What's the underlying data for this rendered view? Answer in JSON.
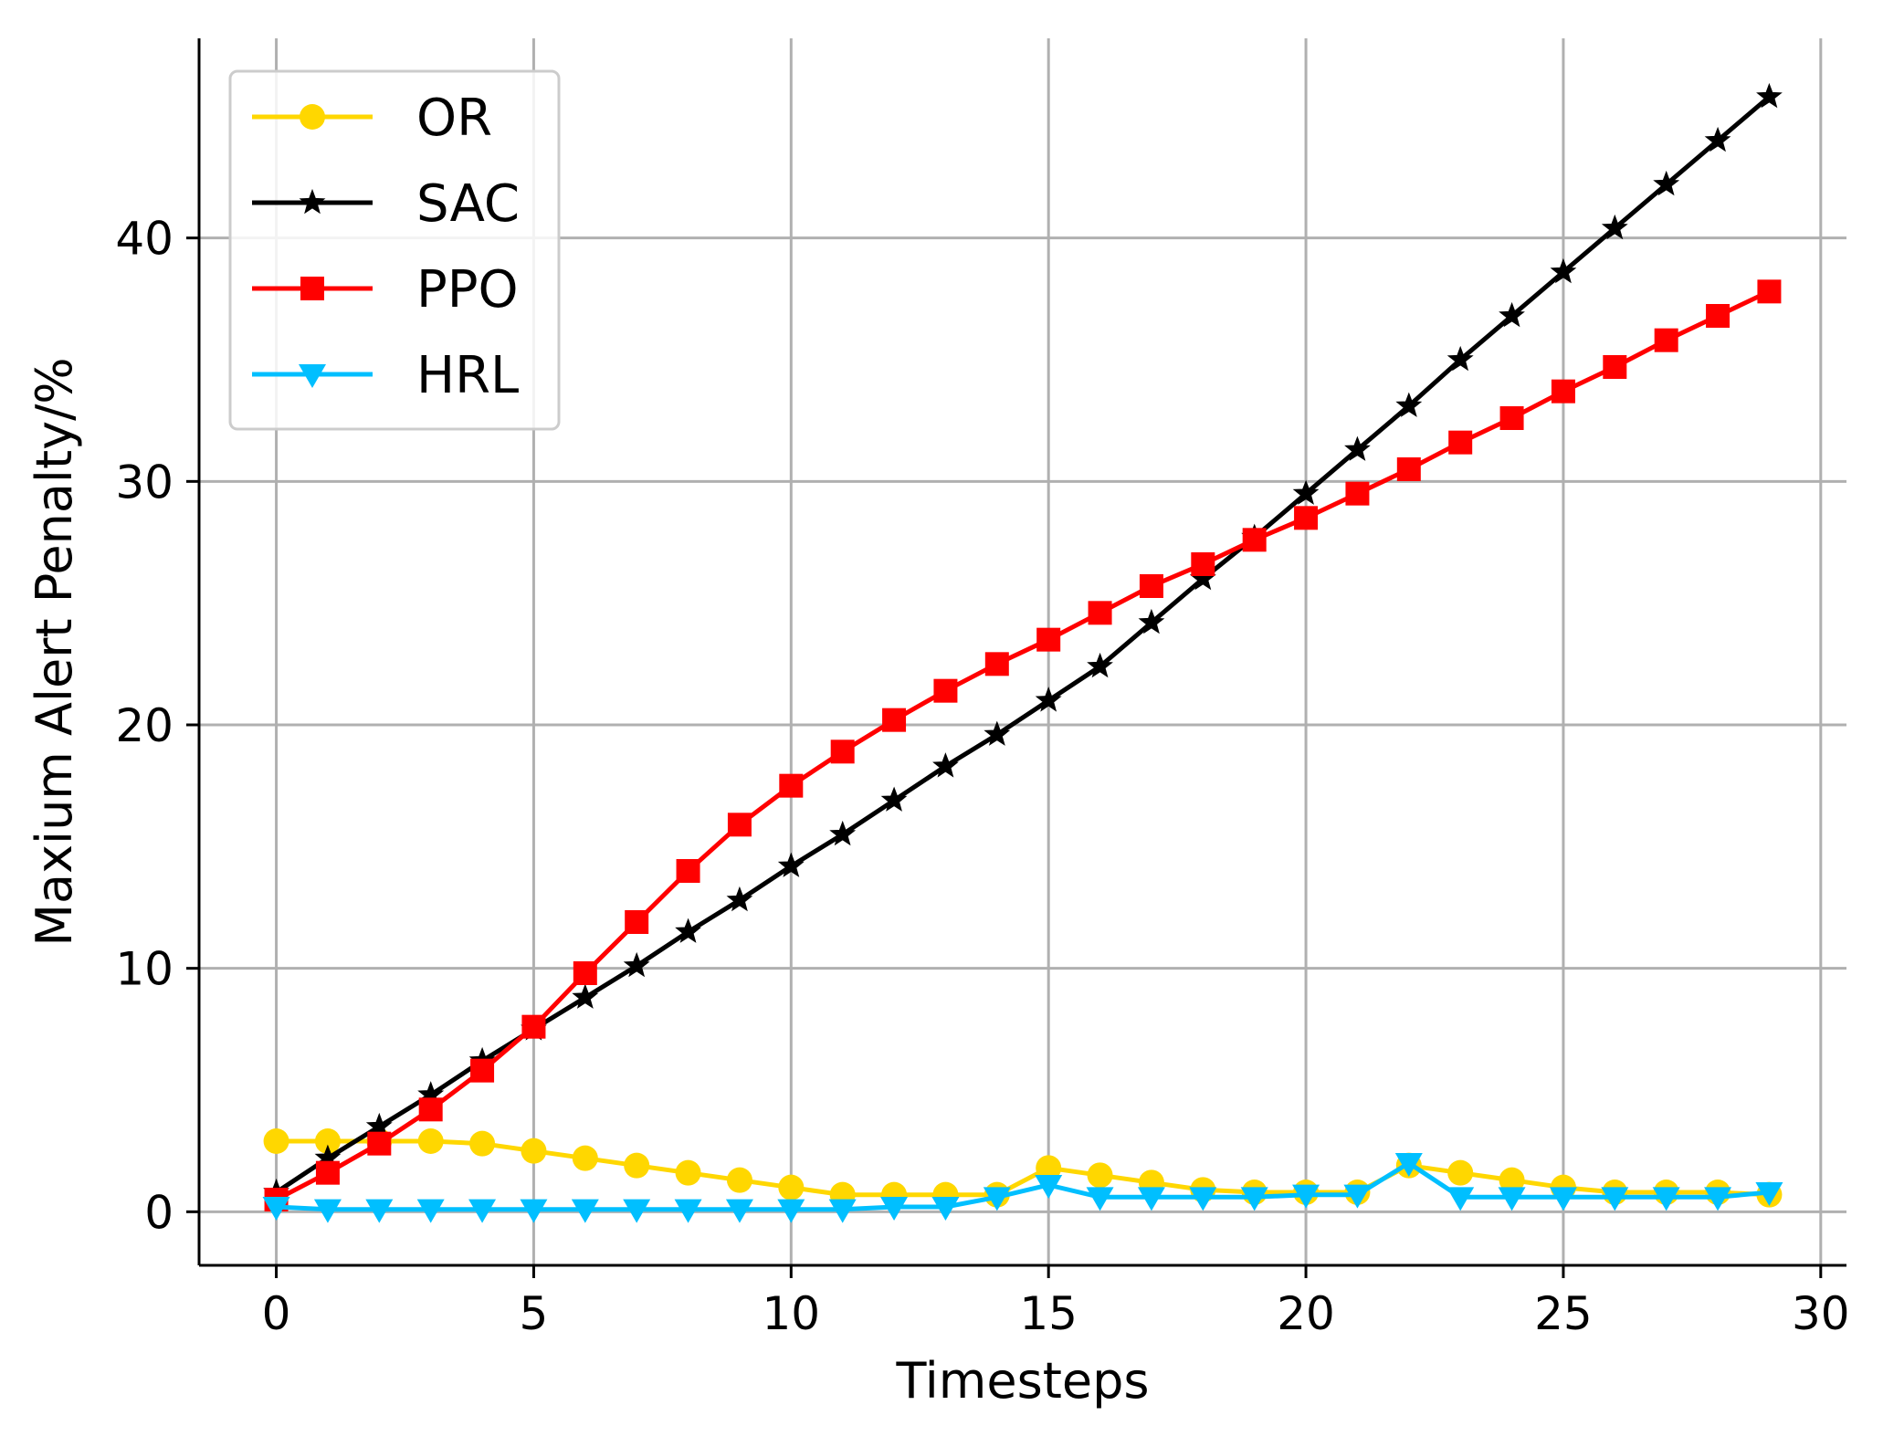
{
  "chart_data": {
    "type": "line",
    "title": "",
    "xlabel": "Timesteps",
    "ylabel": "Maxium Alert Penalty/%",
    "xlim": [
      -1.5,
      30.5
    ],
    "ylim": [
      -2.2,
      48.2
    ],
    "xticks": [
      0,
      5,
      10,
      15,
      20,
      25,
      30
    ],
    "yticks": [
      0,
      10,
      20,
      30,
      40
    ],
    "grid": true,
    "legend_position": "top-left",
    "x": [
      0,
      1,
      2,
      3,
      4,
      5,
      6,
      7,
      8,
      9,
      10,
      11,
      12,
      13,
      14,
      15,
      16,
      17,
      18,
      19,
      20,
      21,
      22,
      23,
      24,
      25,
      26,
      27,
      28,
      29
    ],
    "series": [
      {
        "name": "OR",
        "color": "#FFD700",
        "marker": "circle",
        "values": [
          2.9,
          2.9,
          2.9,
          2.9,
          2.8,
          2.5,
          2.2,
          1.9,
          1.6,
          1.3,
          1.0,
          0.7,
          0.7,
          0.7,
          0.7,
          1.8,
          1.5,
          1.2,
          0.9,
          0.8,
          0.8,
          0.8,
          1.9,
          1.6,
          1.3,
          1.0,
          0.8,
          0.8,
          0.8,
          0.7
        ]
      },
      {
        "name": "SAC",
        "color": "#000000",
        "marker": "star",
        "values": [
          0.8,
          2.2,
          3.5,
          4.8,
          6.2,
          7.5,
          8.8,
          10.1,
          11.5,
          12.8,
          14.2,
          15.5,
          16.9,
          18.3,
          19.6,
          21.0,
          22.4,
          24.2,
          26.0,
          27.7,
          29.5,
          31.3,
          33.1,
          35.0,
          36.8,
          38.6,
          40.4,
          42.2,
          44.0,
          45.8
        ]
      },
      {
        "name": "PPO",
        "color": "#FF0000",
        "marker": "square",
        "values": [
          0.5,
          1.6,
          2.8,
          4.2,
          5.8,
          7.6,
          9.8,
          11.9,
          14.0,
          15.9,
          17.5,
          18.9,
          20.2,
          21.4,
          22.5,
          23.5,
          24.6,
          25.7,
          26.6,
          27.6,
          28.5,
          29.5,
          30.5,
          31.6,
          32.6,
          33.7,
          34.7,
          35.8,
          36.8,
          37.8
        ]
      },
      {
        "name": "HRL",
        "color": "#00BFFF",
        "marker": "triangle-down",
        "values": [
          0.2,
          0.1,
          0.1,
          0.1,
          0.1,
          0.1,
          0.1,
          0.1,
          0.1,
          0.1,
          0.1,
          0.1,
          0.2,
          0.2,
          0.6,
          1.1,
          0.6,
          0.6,
          0.6,
          0.6,
          0.7,
          0.7,
          2.0,
          0.6,
          0.6,
          0.6,
          0.6,
          0.6,
          0.6,
          0.8
        ]
      }
    ]
  }
}
